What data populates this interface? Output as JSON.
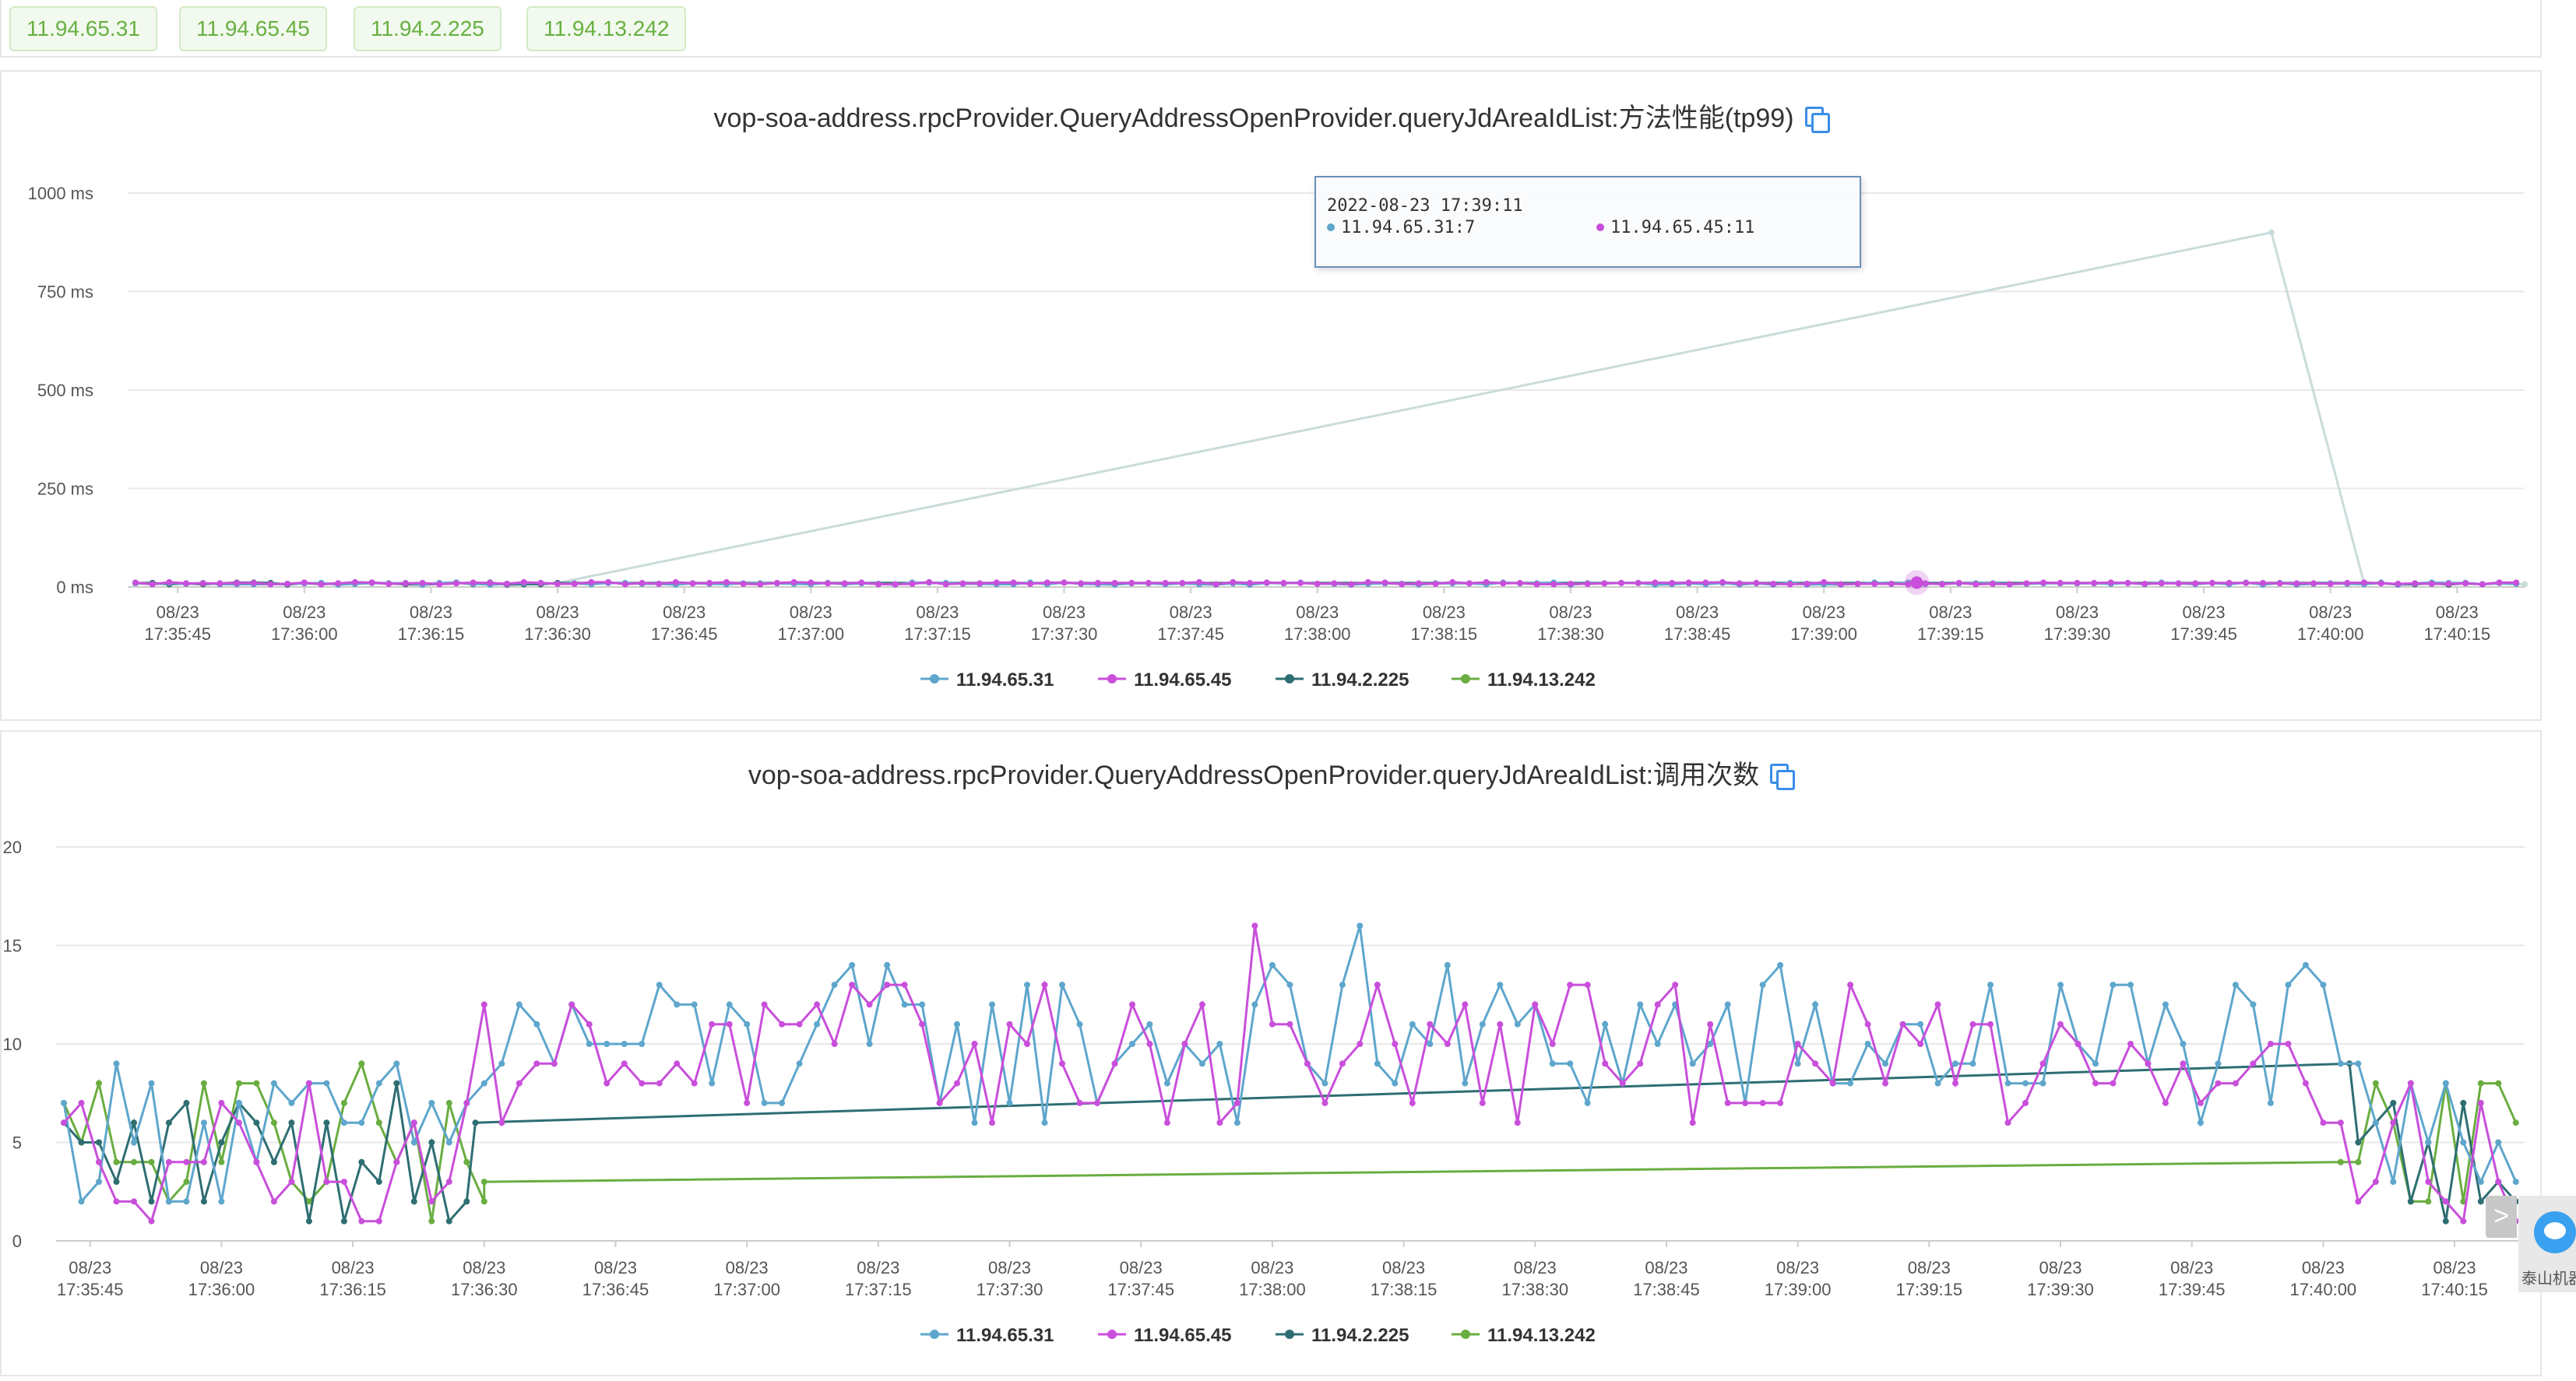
{
  "ip_tags": [
    "11.94.65.31",
    "11.94.65.45",
    "11.94.2.225",
    "11.94.13.242"
  ],
  "colors": {
    "series": [
      "#5ea6cc",
      "#c94fdb",
      "#2e6e72",
      "#6aad40"
    ],
    "grid": "#e8e8e8",
    "tag_text": "#67b041"
  },
  "icons": {
    "copy": "copy-icon",
    "scroll": "chevron-right-icon",
    "widget": "assistant-avatar-icon"
  },
  "side_widget": {
    "label": "泰山机器"
  },
  "scroll_arrow": {
    "label": ">"
  },
  "tooltip": {
    "time": "2022-08-23 17:39:11",
    "items": [
      "11.94.65.31:7",
      "11.94.65.45:11"
    ]
  },
  "chart_data": [
    {
      "type": "line",
      "title": "vop-soa-address.rpcProvider.QueryAddressOpenProvider.queryJdAreaIdList:方法性能(tp99)",
      "x_ticks": [
        {
          "date": "08/23",
          "time": "17:35:45"
        },
        {
          "date": "08/23",
          "time": "17:36:00"
        },
        {
          "date": "08/23",
          "time": "17:36:15"
        },
        {
          "date": "08/23",
          "time": "17:36:30"
        },
        {
          "date": "08/23",
          "time": "17:36:45"
        },
        {
          "date": "08/23",
          "time": "17:37:00"
        },
        {
          "date": "08/23",
          "time": "17:37:15"
        },
        {
          "date": "08/23",
          "time": "17:37:30"
        },
        {
          "date": "08/23",
          "time": "17:37:45"
        },
        {
          "date": "08/23",
          "time": "17:38:00"
        },
        {
          "date": "08/23",
          "time": "17:38:15"
        },
        {
          "date": "08/23",
          "time": "17:38:30"
        },
        {
          "date": "08/23",
          "time": "17:38:45"
        },
        {
          "date": "08/23",
          "time": "17:39:00"
        },
        {
          "date": "08/23",
          "time": "17:39:15"
        },
        {
          "date": "08/23",
          "time": "17:39:30"
        },
        {
          "date": "08/23",
          "time": "17:39:45"
        },
        {
          "date": "08/23",
          "time": "17:40:00"
        },
        {
          "date": "08/23",
          "time": "17:40:15"
        }
      ],
      "y_ticks": [
        "0 ms",
        "250 ms",
        "500 ms",
        "750 ms",
        "1000 ms"
      ],
      "ylim": [
        0,
        1000
      ],
      "xlim": [
        "17:35:40",
        "17:40:23"
      ],
      "grid": true,
      "legend_position": "bottom-center",
      "series": [
        {
          "name": "11.94.65.31",
          "pattern": "noise",
          "t_start": "17:35:40",
          "t_end": "17:40:23",
          "low": 6,
          "high": 11
        },
        {
          "name": "11.94.65.45",
          "pattern": "noise",
          "t_start": "17:35:40",
          "t_end": "17:40:23",
          "low": 7,
          "high": 12
        },
        {
          "name": "11.94.2.225",
          "pattern": "noise_gap",
          "t_start": "17:35:40",
          "t_end": "17:40:23",
          "gap": [
            "17:36:30",
            "17:40:04"
          ],
          "low": 6,
          "high": 11
        },
        {
          "name": "11.94.13.242",
          "pattern": "anchors",
          "points": [
            [
              "17:35:40",
              8
            ],
            [
              "17:36:30",
              10
            ],
            [
              "17:39:53",
              900
            ],
            [
              "17:40:04",
              8
            ],
            [
              "17:40:23",
              7
            ]
          ]
        }
      ],
      "highlight": {
        "series": "11.94.65.45",
        "time": "17:39:11",
        "value": 11
      }
    },
    {
      "type": "line",
      "title": "vop-soa-address.rpcProvider.QueryAddressOpenProvider.queryJdAreaIdList:调用次数",
      "x_ticks": [
        {
          "date": "08/23",
          "time": "17:35:45"
        },
        {
          "date": "08/23",
          "time": "17:36:00"
        },
        {
          "date": "08/23",
          "time": "17:36:15"
        },
        {
          "date": "08/23",
          "time": "17:36:30"
        },
        {
          "date": "08/23",
          "time": "17:36:45"
        },
        {
          "date": "08/23",
          "time": "17:37:00"
        },
        {
          "date": "08/23",
          "time": "17:37:15"
        },
        {
          "date": "08/23",
          "time": "17:37:30"
        },
        {
          "date": "08/23",
          "time": "17:37:45"
        },
        {
          "date": "08/23",
          "time": "17:38:00"
        },
        {
          "date": "08/23",
          "time": "17:38:15"
        },
        {
          "date": "08/23",
          "time": "17:38:30"
        },
        {
          "date": "08/23",
          "time": "17:38:45"
        },
        {
          "date": "08/23",
          "time": "17:39:00"
        },
        {
          "date": "08/23",
          "time": "17:39:15"
        },
        {
          "date": "08/23",
          "time": "17:39:30"
        },
        {
          "date": "08/23",
          "time": "17:39:45"
        },
        {
          "date": "08/23",
          "time": "17:40:00"
        },
        {
          "date": "08/23",
          "time": "17:40:15"
        }
      ],
      "y_ticks": [
        "0",
        "5",
        "10",
        "15",
        "20"
      ],
      "ylim": [
        0,
        20
      ],
      "xlim": [
        "17:35:42",
        "17:40:23"
      ],
      "grid": true,
      "legend_position": "bottom-center",
      "series": [
        {
          "name": "11.94.65.31",
          "pattern": "noise",
          "t_start": "17:35:42",
          "t_end": "17:40:23",
          "low": 2,
          "high": 9,
          "gap_high": 14,
          "busy": [
            "17:36:29",
            "17:40:03"
          ]
        },
        {
          "name": "11.94.65.45",
          "pattern": "noise",
          "t_start": "17:35:42",
          "t_end": "17:40:23",
          "low": 1,
          "high": 8,
          "gap_high": 13,
          "busy": [
            "17:36:29",
            "17:40:03"
          ]
        },
        {
          "name": "11.94.2.225",
          "pattern": "noise_gap",
          "t_start": "17:35:42",
          "t_end": "17:40:23",
          "gap": [
            "17:36:29",
            "17:40:03"
          ],
          "gap_values": [
            6,
            9
          ],
          "low": 1,
          "high": 8
        },
        {
          "name": "11.94.13.242",
          "pattern": "noise_gap",
          "t_start": "17:35:42",
          "t_end": "17:40:23",
          "gap": [
            "17:36:30",
            "17:40:02"
          ],
          "gap_values": [
            3,
            4
          ],
          "low": 1,
          "high": 9
        }
      ],
      "annotations": {
        "peak_16_at": "17:37:57",
        "spike_16_at": "17:38:09"
      }
    }
  ]
}
